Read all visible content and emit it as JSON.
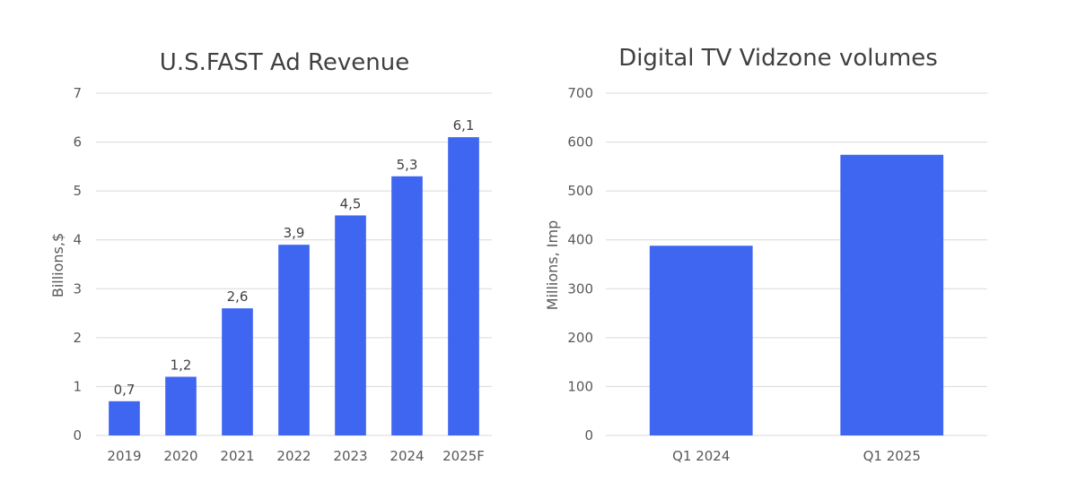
{
  "chart_data": [
    {
      "type": "bar",
      "title": "U.S.FAST Ad Revenue",
      "xlabel": "",
      "ylabel": "Billions,$",
      "categories": [
        "2019",
        "2020",
        "2021",
        "2022",
        "2023",
        "2024",
        "2025F"
      ],
      "values": [
        0.7,
        1.2,
        2.6,
        3.9,
        4.5,
        5.3,
        6.1
      ],
      "value_labels": [
        "0,7",
        "1,2",
        "2,6",
        "3,9",
        "4,5",
        "5,3",
        "6,1"
      ],
      "ylim": [
        0,
        7
      ],
      "yticks": [
        0,
        1,
        2,
        3,
        4,
        5,
        6,
        7
      ],
      "ytick_labels": [
        "0",
        "1",
        "2",
        "3",
        "4",
        "5",
        "6",
        "7"
      ],
      "grid": true,
      "legend": "none",
      "color": "#3f66f1"
    },
    {
      "type": "bar",
      "title": "Digital TV Vidzone volumes",
      "xlabel": "",
      "ylabel": "Millions, Imp",
      "categories": [
        "Q1 2024",
        "Q1 2025"
      ],
      "values": [
        388,
        574
      ],
      "ylim": [
        0,
        700
      ],
      "yticks": [
        0,
        100,
        200,
        300,
        400,
        500,
        600,
        700
      ],
      "ytick_labels": [
        "0",
        "100",
        "200",
        "300",
        "400",
        "500",
        "600",
        "700"
      ],
      "grid": true,
      "legend": "none",
      "color": "#3f66f1"
    }
  ]
}
